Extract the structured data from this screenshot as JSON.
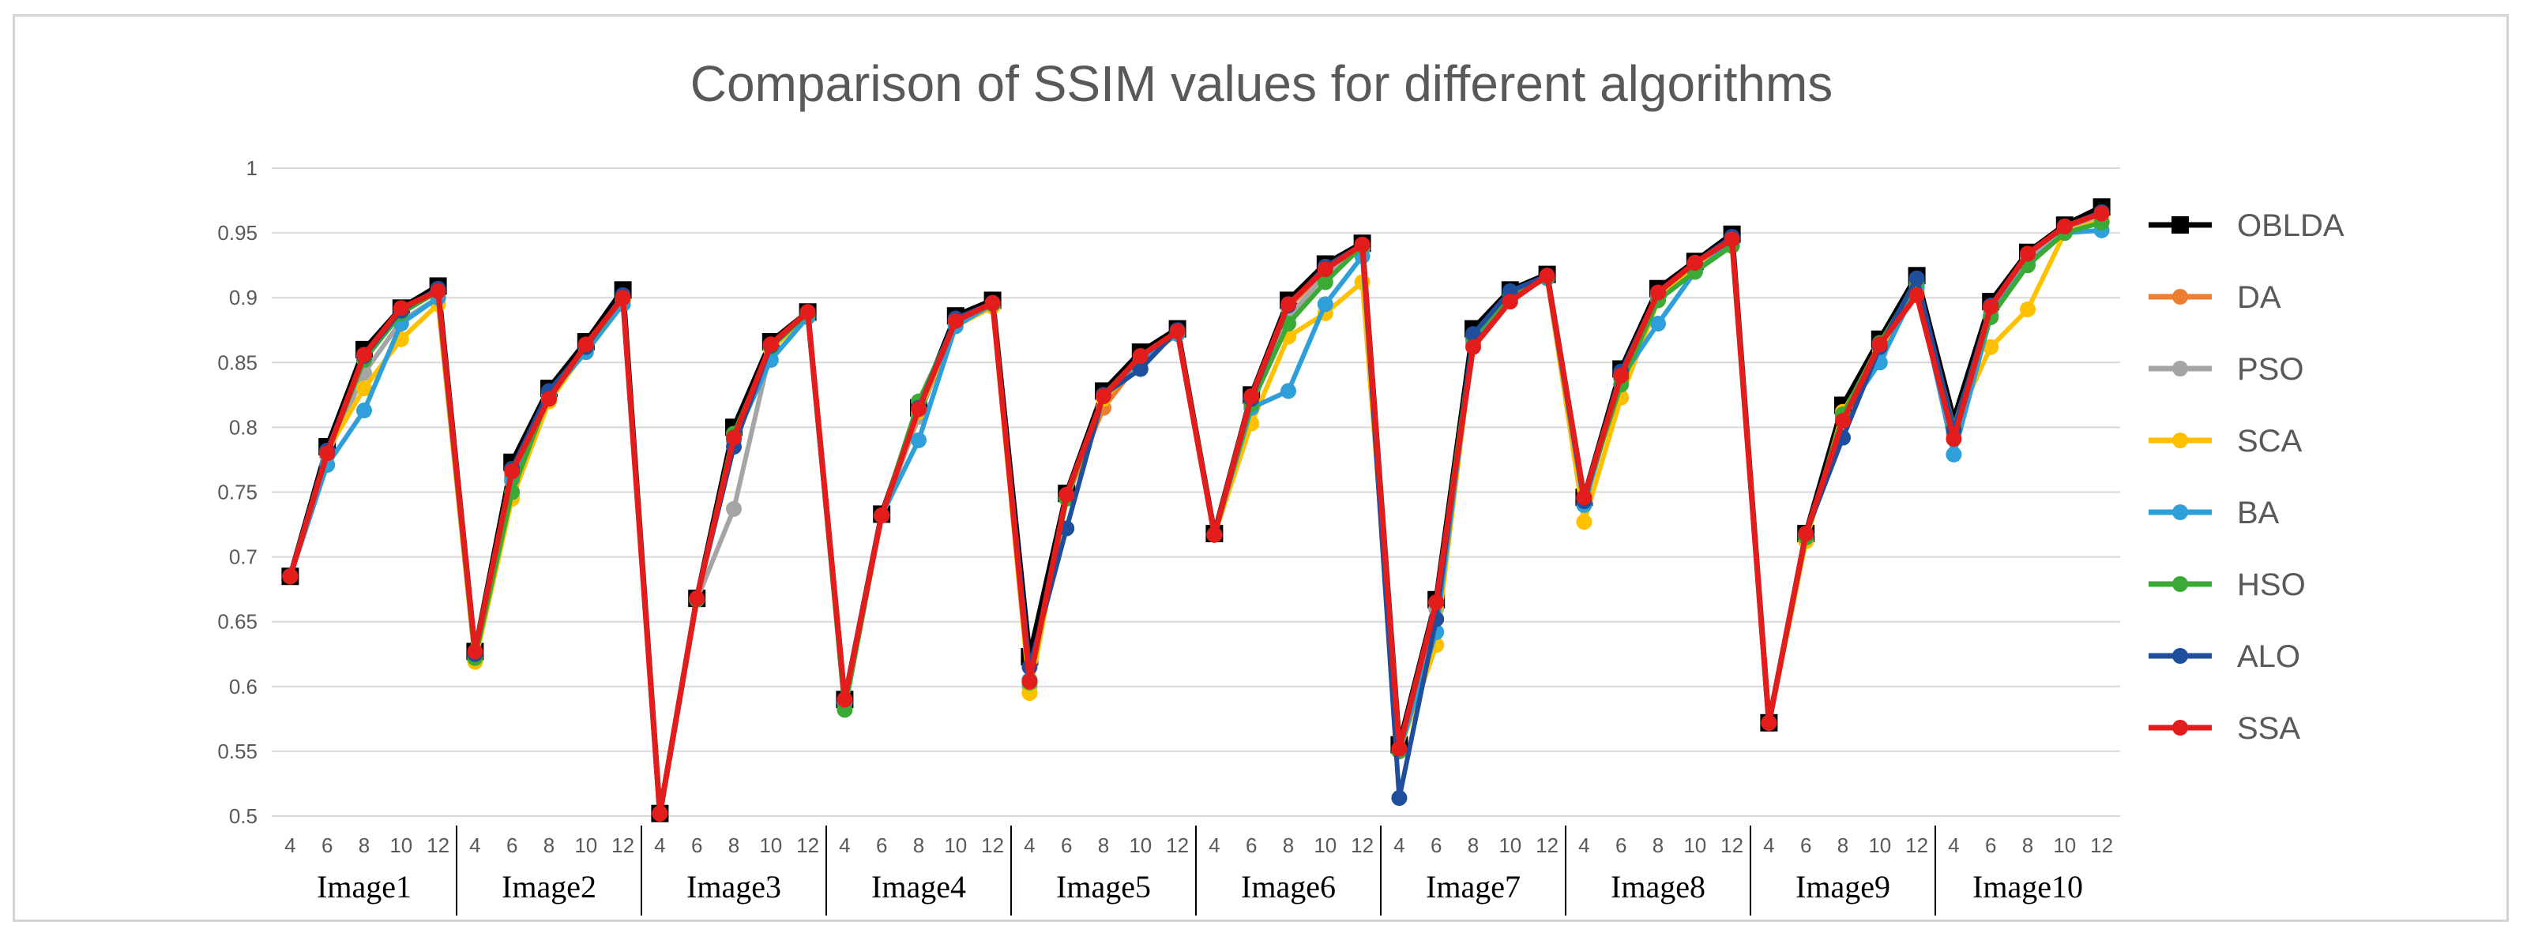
{
  "chart_data": {
    "type": "line",
    "title": "Comparison of SSIM values for different algorithms",
    "xlabel": "",
    "ylabel": "",
    "ylim": [
      0.5,
      1.0
    ],
    "yticks": [
      "0.5",
      "0.55",
      "0.6",
      "0.65",
      "0.7",
      "0.75",
      "0.8",
      "0.85",
      "0.9",
      "0.95",
      "1"
    ],
    "grid": true,
    "legend_position": "right",
    "groups": [
      "Image1",
      "Image2",
      "Image3",
      "Image4",
      "Image5",
      "Image6",
      "Image7",
      "Image8",
      "Image9",
      "Image10"
    ],
    "thresholds": [
      "4",
      "6",
      "8",
      "10",
      "12"
    ],
    "series": [
      {
        "name": "OBLDA",
        "color": "#000000",
        "marker": "square",
        "values": [
          [
            0.685,
            0.785,
            0.86,
            0.892,
            0.909
          ],
          [
            0.627,
            0.773,
            0.83,
            0.866,
            0.906
          ],
          [
            0.502,
            0.668,
            0.8,
            0.866,
            0.889
          ],
          [
            0.59,
            0.733,
            0.815,
            0.886,
            0.898
          ],
          [
            0.623,
            0.749,
            0.828,
            0.858,
            0.876
          ],
          [
            0.718,
            0.825,
            0.898,
            0.926,
            0.942
          ],
          [
            0.555,
            0.667,
            0.876,
            0.906,
            0.918
          ],
          [
            0.746,
            0.845,
            0.907,
            0.928,
            0.949
          ],
          [
            0.572,
            0.718,
            0.817,
            0.868,
            0.917
          ],
          [
            0.806,
            0.897,
            0.935,
            0.956,
            0.97
          ]
        ]
      },
      {
        "name": "DA",
        "color": "#ed7d31",
        "marker": "circle",
        "values": [
          [
            0.685,
            0.78,
            0.852,
            0.89,
            0.905
          ],
          [
            0.626,
            0.762,
            0.822,
            0.862,
            0.9
          ],
          [
            0.502,
            0.667,
            0.79,
            0.862,
            0.888
          ],
          [
            0.588,
            0.732,
            0.812,
            0.882,
            0.895
          ],
          [
            0.605,
            0.745,
            0.815,
            0.852,
            0.874
          ],
          [
            0.717,
            0.822,
            0.892,
            0.922,
            0.94
          ],
          [
            0.552,
            0.665,
            0.865,
            0.9,
            0.916
          ],
          [
            0.745,
            0.84,
            0.902,
            0.926,
            0.946
          ],
          [
            0.572,
            0.717,
            0.808,
            0.862,
            0.902
          ],
          [
            0.795,
            0.893,
            0.933,
            0.955,
            0.966
          ]
        ]
      },
      {
        "name": "PSO",
        "color": "#a5a5a5",
        "marker": "circle",
        "values": [
          [
            0.685,
            0.778,
            0.842,
            0.882,
            0.9
          ],
          [
            0.625,
            0.758,
            0.825,
            0.86,
            0.898
          ],
          [
            0.502,
            0.667,
            0.737,
            0.86,
            0.887
          ],
          [
            0.588,
            0.732,
            0.808,
            0.88,
            0.893
          ],
          [
            0.6,
            0.745,
            0.823,
            0.852,
            0.873
          ],
          [
            0.717,
            0.818,
            0.885,
            0.918,
            0.938
          ],
          [
            0.55,
            0.66,
            0.868,
            0.902,
            0.916
          ],
          [
            0.745,
            0.838,
            0.9,
            0.925,
            0.945
          ],
          [
            0.572,
            0.717,
            0.808,
            0.858,
            0.908
          ],
          [
            0.8,
            0.89,
            0.93,
            0.952,
            0.96
          ]
        ]
      },
      {
        "name": "SCA",
        "color": "#ffc000",
        "marker": "circle",
        "values": [
          [
            0.685,
            0.782,
            0.83,
            0.868,
            0.895
          ],
          [
            0.619,
            0.745,
            0.82,
            0.86,
            0.898
          ],
          [
            0.502,
            0.667,
            0.795,
            0.86,
            0.887
          ],
          [
            0.588,
            0.732,
            0.812,
            0.878,
            0.893
          ],
          [
            0.595,
            0.745,
            0.822,
            0.85,
            0.872
          ],
          [
            0.717,
            0.803,
            0.87,
            0.888,
            0.912
          ],
          [
            0.55,
            0.632,
            0.868,
            0.9,
            0.915
          ],
          [
            0.727,
            0.823,
            0.898,
            0.925,
            0.945
          ],
          [
            0.572,
            0.712,
            0.812,
            0.86,
            0.905
          ],
          [
            0.8,
            0.862,
            0.891,
            0.95,
            0.96
          ]
        ]
      },
      {
        "name": "BA",
        "color": "#2e9fd8",
        "marker": "circle",
        "values": [
          [
            0.685,
            0.771,
            0.813,
            0.88,
            0.9
          ],
          [
            0.622,
            0.76,
            0.825,
            0.858,
            0.895
          ],
          [
            0.502,
            0.667,
            0.79,
            0.852,
            0.885
          ],
          [
            0.588,
            0.732,
            0.79,
            0.878,
            0.895
          ],
          [
            0.605,
            0.745,
            0.825,
            0.852,
            0.872
          ],
          [
            0.717,
            0.815,
            0.828,
            0.895,
            0.932
          ],
          [
            0.55,
            0.642,
            0.868,
            0.902,
            0.915
          ],
          [
            0.74,
            0.838,
            0.88,
            0.92,
            0.942
          ],
          [
            0.572,
            0.717,
            0.808,
            0.85,
            0.908
          ],
          [
            0.779,
            0.886,
            0.926,
            0.95,
            0.952
          ]
        ]
      },
      {
        "name": "HSO",
        "color": "#3aa935",
        "marker": "circle",
        "values": [
          [
            0.685,
            0.78,
            0.852,
            0.888,
            0.905
          ],
          [
            0.622,
            0.75,
            0.825,
            0.862,
            0.9
          ],
          [
            0.502,
            0.667,
            0.795,
            0.862,
            0.888
          ],
          [
            0.582,
            0.732,
            0.82,
            0.882,
            0.895
          ],
          [
            0.603,
            0.745,
            0.825,
            0.855,
            0.874
          ],
          [
            0.717,
            0.818,
            0.88,
            0.912,
            0.94
          ],
          [
            0.55,
            0.665,
            0.87,
            0.902,
            0.916
          ],
          [
            0.745,
            0.833,
            0.898,
            0.92,
            0.94
          ],
          [
            0.572,
            0.715,
            0.81,
            0.865,
            0.912
          ],
          [
            0.8,
            0.885,
            0.925,
            0.95,
            0.958
          ]
        ]
      },
      {
        "name": "ALO",
        "color": "#1f4e9c",
        "marker": "circle",
        "values": [
          [
            0.685,
            0.782,
            0.855,
            0.89,
            0.907
          ],
          [
            0.625,
            0.768,
            0.828,
            0.862,
            0.902
          ],
          [
            0.502,
            0.668,
            0.785,
            0.863,
            0.889
          ],
          [
            0.59,
            0.732,
            0.815,
            0.884,
            0.896
          ],
          [
            0.615,
            0.722,
            0.825,
            0.845,
            0.875
          ],
          [
            0.717,
            0.822,
            0.894,
            0.924,
            0.941
          ],
          [
            0.514,
            0.652,
            0.872,
            0.905,
            0.917
          ],
          [
            0.743,
            0.843,
            0.904,
            0.927,
            0.947
          ],
          [
            0.572,
            0.718,
            0.792,
            0.862,
            0.915
          ],
          [
            0.798,
            0.894,
            0.934,
            0.955,
            0.966
          ]
        ]
      },
      {
        "name": "SSA",
        "color": "#e31c1c",
        "marker": "circle",
        "values": [
          [
            0.685,
            0.78,
            0.856,
            0.892,
            0.905
          ],
          [
            0.627,
            0.766,
            0.822,
            0.864,
            0.9
          ],
          [
            0.502,
            0.668,
            0.792,
            0.864,
            0.889
          ],
          [
            0.59,
            0.732,
            0.814,
            0.882,
            0.896
          ],
          [
            0.604,
            0.748,
            0.824,
            0.855,
            0.874
          ],
          [
            0.717,
            0.824,
            0.895,
            0.922,
            0.941
          ],
          [
            0.552,
            0.665,
            0.862,
            0.897,
            0.917
          ],
          [
            0.746,
            0.84,
            0.904,
            0.927,
            0.945
          ],
          [
            0.572,
            0.718,
            0.805,
            0.864,
            0.902
          ],
          [
            0.791,
            0.893,
            0.934,
            0.955,
            0.965
          ]
        ]
      }
    ]
  }
}
